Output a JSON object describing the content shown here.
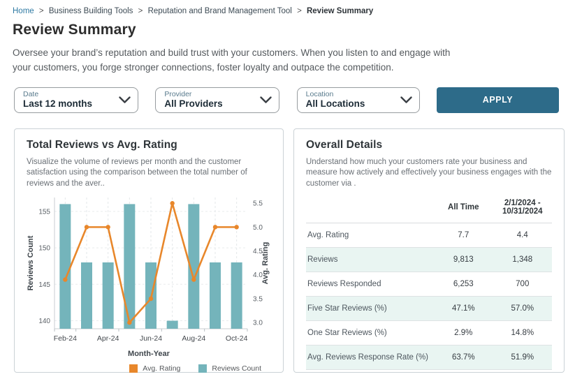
{
  "breadcrumb": {
    "separator": ">",
    "items": [
      "Home",
      "Business Building Tools",
      "Reputation and Brand Management Tool",
      "Review Summary"
    ]
  },
  "page": {
    "title": "Review Summary",
    "description": "Oversee your brand’s reputation and build trust with your customers. When you listen to and engage with your customers, you forge stronger connections, foster loyalty and outpace the competition."
  },
  "filters": {
    "date": {
      "label": "Date",
      "value": "Last 12 months"
    },
    "provider": {
      "label": "Provider",
      "value": "All Providers"
    },
    "location": {
      "label": "Location",
      "value": "All Locations"
    },
    "apply_label": "APPLY"
  },
  "chart_panel": {
    "title": "Total Reviews vs Avg. Rating",
    "subtitle": "Visualize the volume of reviews per month and the customer satisfaction using the comparison between the total number of reviews and the aver.."
  },
  "chart_data": {
    "type": "bar+line",
    "categories": [
      "Feb-24",
      "Mar-24",
      "Apr-24",
      "May-24",
      "Jun-24",
      "Jul-24",
      "Aug-24",
      "Sep-24",
      "Oct-24"
    ],
    "x_tick_labels": [
      "Feb-24",
      "Apr-24",
      "Jun-24",
      "Aug-24",
      "Oct-24"
    ],
    "series": [
      {
        "name": "Reviews Count",
        "type": "bar",
        "axis": "left",
        "color": "#74b4bb",
        "values": [
          156,
          148,
          148,
          156,
          148,
          140,
          156,
          148,
          148
        ]
      },
      {
        "name": "Avg. Rating",
        "type": "line",
        "axis": "right",
        "color": "#e8872b",
        "values": [
          3.9,
          5.0,
          5.0,
          3.0,
          3.5,
          5.5,
          3.9,
          5.0,
          5.0
        ]
      }
    ],
    "xlabel": "Month-Year",
    "ylabel_left": "Reviews Count",
    "ylabel_right": "Avg. Rating",
    "left_ticks": [
      140,
      145,
      150,
      155
    ],
    "right_ticks": [
      "3.0",
      "3.5",
      "4.0",
      "4.5",
      "5.0",
      "5.5"
    ],
    "left_ylim": [
      138.9,
      156.9
    ],
    "right_ylim": [
      2.87,
      5.62
    ],
    "grid": "dashed",
    "legend_position": "bottom",
    "legend": [
      {
        "label": "Avg. Rating",
        "color": "#e8872b"
      },
      {
        "label": "Reviews Count",
        "color": "#74b4bb"
      }
    ]
  },
  "details_panel": {
    "title": "Overall Details",
    "subtitle": "Understand how much your customers rate your business and measure how actively and effectively your business engages with the customer via .",
    "table": {
      "columns": [
        "",
        "All Time",
        "2/1/2024 - 10/31/2024"
      ],
      "rows": [
        {
          "label": "Avg. Rating",
          "all_time": "7.7",
          "period": "4.4"
        },
        {
          "label": "Reviews",
          "all_time": "9,813",
          "period": "1,348"
        },
        {
          "label": "Reviews Responded",
          "all_time": "6,253",
          "period": "700"
        },
        {
          "label": "Five Star Reviews (%)",
          "all_time": "47.1%",
          "period": "57.0%"
        },
        {
          "label": "One Star Reviews (%)",
          "all_time": "2.9%",
          "period": "14.8%"
        },
        {
          "label": "Avg. Reviews Response Rate (%)",
          "all_time": "63.7%",
          "period": "51.9%"
        }
      ]
    }
  },
  "colors": {
    "accent_teal_dark": "#2d6b89",
    "link": "#2f7aa3",
    "bar": "#74b4bb",
    "line": "#e8872b",
    "alt_row": "#e9f5f2"
  }
}
